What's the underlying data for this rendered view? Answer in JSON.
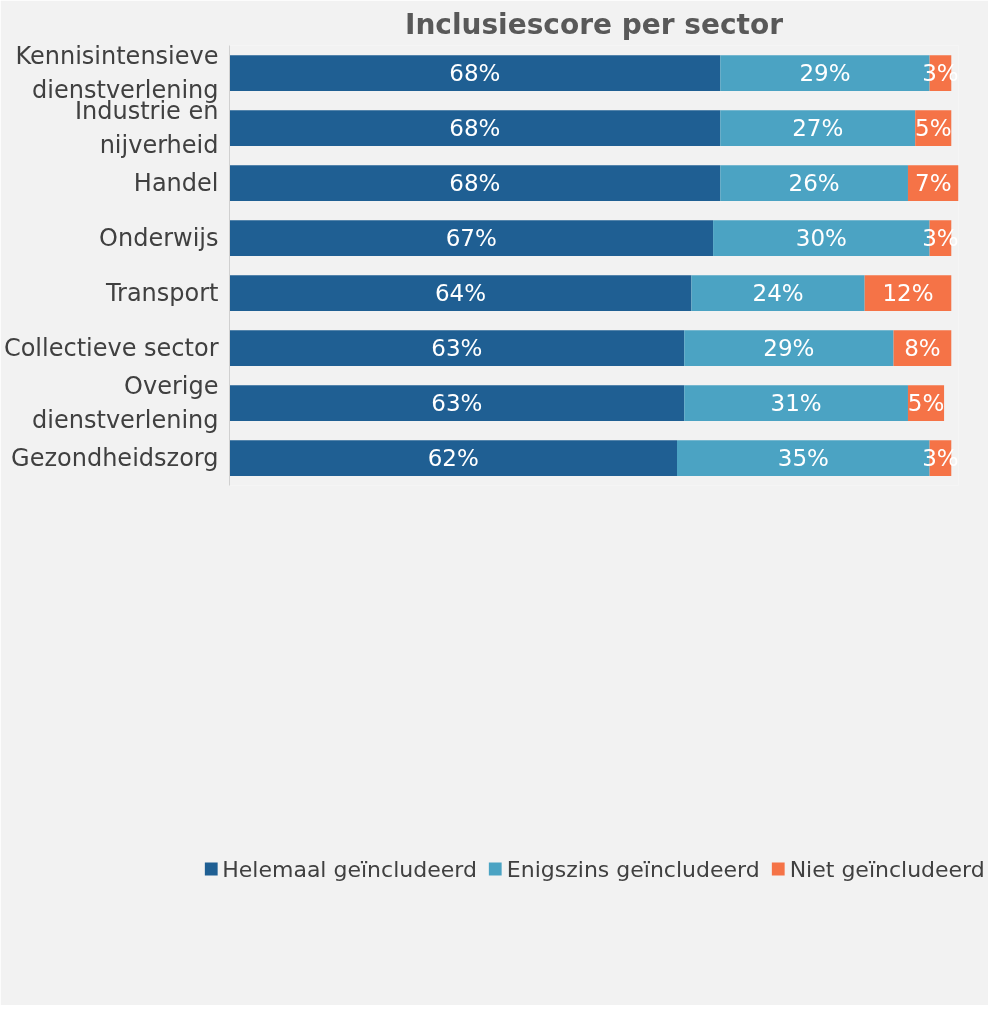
{
  "chart_data": {
    "type": "bar",
    "orientation": "horizontal",
    "stacked": true,
    "title": "Inclusiescore per sector",
    "categories": [
      "Kennisintensieve dienstverlening",
      "Industrie en nijverheid",
      "Handel",
      "Onderwijs",
      "Transport",
      "Collectieve sector",
      "Overige dienstverlening",
      "Gezondheidszorg"
    ],
    "series": [
      {
        "name": "Helemaal geïncludeerd",
        "color": "#1f5f93",
        "values": [
          68,
          68,
          68,
          67,
          64,
          63,
          63,
          62
        ],
        "value_labels": [
          "68%",
          "68%",
          "68%",
          "67%",
          "64%",
          "63%",
          "63%",
          "62%"
        ]
      },
      {
        "name": "Enigszins geïncludeerd",
        "color": "#4ba3c3",
        "values": [
          29,
          27,
          26,
          30,
          24,
          29,
          31,
          35
        ],
        "value_labels": [
          "29%",
          "27%",
          "26%",
          "30%",
          "24%",
          "29%",
          "31%",
          "35%"
        ]
      },
      {
        "name": "Niet geïncludeerd",
        "color": "#f57347",
        "values": [
          3,
          5,
          7,
          3,
          12,
          8,
          5,
          3
        ],
        "value_labels": [
          "3%",
          "5%",
          "7%",
          "3%",
          "12%",
          "8%",
          "5%",
          "3%"
        ]
      }
    ],
    "tick_labels": "y",
    "grid": false,
    "legend": "bottom"
  }
}
